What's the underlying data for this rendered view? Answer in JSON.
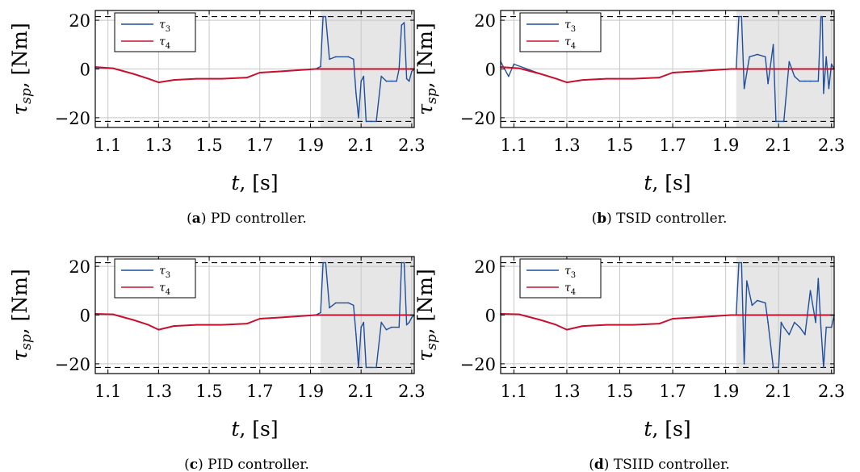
{
  "colors": {
    "tau3": "#1f4e9a",
    "tau4": "#c8102e",
    "shade": "#e6e6e6",
    "grid": "#c8c8c8",
    "limit": "#000000"
  },
  "chart_data": [
    {
      "type": "line",
      "caption_letter": "a",
      "caption_text": " PD controller.",
      "xlabel": "t, [s]",
      "ylabel": "τsp, [Nm]",
      "xlim": [
        1.05,
        2.31
      ],
      "ylim": [
        -24,
        24
      ],
      "xticks": [
        "1.1",
        "1.3",
        "1.5",
        "1.7",
        "1.9",
        "2.1",
        "2.3"
      ],
      "yticks": [
        "20",
        "0",
        "−20"
      ],
      "limits": [
        21.5,
        -21.5
      ],
      "shaded": [
        1.94,
        2.31
      ],
      "grid": true,
      "legend": {
        "position": "top-left",
        "entries": [
          "τ3",
          "τ4"
        ]
      },
      "series": [
        {
          "name": "τ3",
          "x": [
            1.05,
            1.12,
            1.2,
            1.26,
            1.3,
            1.36,
            1.45,
            1.55,
            1.65,
            1.7,
            1.78,
            1.85,
            1.92,
            1.94,
            1.95,
            1.96,
            1.975,
            2.0,
            2.05,
            2.07,
            2.08,
            2.09,
            2.1,
            2.11,
            2.12,
            2.14,
            2.16,
            2.18,
            2.2,
            2.22,
            2.24,
            2.25,
            2.26,
            2.27,
            2.28,
            2.29,
            2.3,
            2.31
          ],
          "y": [
            0.5,
            0.3,
            -2,
            -4,
            -5.5,
            -4.5,
            -4,
            -4,
            -3.5,
            -1.5,
            -1,
            -0.5,
            0,
            1,
            21.5,
            21.5,
            4,
            5,
            5,
            4,
            -10,
            -20,
            -5,
            -3,
            -21.5,
            -21.5,
            -21.5,
            -3,
            -5,
            -5,
            -5,
            0,
            18,
            19,
            -4,
            -5,
            -1,
            0
          ]
        },
        {
          "name": "τ4",
          "x": [
            1.05,
            1.12,
            1.2,
            1.26,
            1.3,
            1.36,
            1.45,
            1.55,
            1.65,
            1.7,
            1.78,
            1.85,
            1.92,
            1.94,
            2.31
          ],
          "y": [
            0.8,
            0.3,
            -2,
            -4,
            -5.5,
            -4.5,
            -4,
            -4,
            -3.5,
            -1.5,
            -1,
            -0.5,
            0,
            0,
            0
          ]
        }
      ]
    },
    {
      "type": "line",
      "caption_letter": "b",
      "caption_text": " TSID controller.",
      "xlabel": "t, [s]",
      "ylabel": "τsp, [Nm]",
      "xlim": [
        1.05,
        2.31
      ],
      "ylim": [
        -24,
        24
      ],
      "xticks": [
        "1.1",
        "1.3",
        "1.5",
        "1.7",
        "1.9",
        "2.1",
        "2.3"
      ],
      "yticks": [
        "20",
        "0",
        "−20"
      ],
      "limits": [
        21.5,
        -21.5
      ],
      "shaded": [
        1.94,
        2.31
      ],
      "grid": true,
      "legend": {
        "position": "top-left",
        "entries": [
          "τ3",
          "τ4"
        ]
      },
      "series": [
        {
          "name": "τ3",
          "x": [
            1.05,
            1.08,
            1.1,
            1.15,
            1.2,
            1.26,
            1.3,
            1.36,
            1.45,
            1.55,
            1.65,
            1.7,
            1.78,
            1.85,
            1.92,
            1.94,
            1.95,
            1.96,
            1.97,
            1.99,
            2.02,
            2.05,
            2.06,
            2.08,
            2.09,
            2.1,
            2.12,
            2.14,
            2.16,
            2.18,
            2.2,
            2.22,
            2.25,
            2.26,
            2.265,
            2.27,
            2.28,
            2.29,
            2.3,
            2.31
          ],
          "y": [
            3,
            -3,
            2,
            0,
            -2,
            -4,
            -5.5,
            -4.5,
            -4,
            -4,
            -3.5,
            -1.5,
            -1,
            -0.5,
            0,
            0,
            21.5,
            21.5,
            -8,
            5,
            6,
            5,
            -6,
            10,
            -21.5,
            -21.5,
            -21.5,
            3,
            -3,
            -5,
            -5,
            -5,
            -5,
            21.5,
            21.5,
            -10,
            5,
            -8,
            2,
            0
          ]
        },
        {
          "name": "τ4",
          "x": [
            1.05,
            1.12,
            1.2,
            1.26,
            1.3,
            1.36,
            1.45,
            1.55,
            1.65,
            1.7,
            1.78,
            1.85,
            1.92,
            1.94,
            2.31
          ],
          "y": [
            0.8,
            0.3,
            -2,
            -4,
            -5.5,
            -4.5,
            -4,
            -4,
            -3.5,
            -1.5,
            -1,
            -0.5,
            0,
            0,
            0
          ]
        }
      ]
    },
    {
      "type": "line",
      "caption_letter": "c",
      "caption_text": " PID controller.",
      "xlabel": "t, [s]",
      "ylabel": "τsp, [Nm]",
      "xlim": [
        1.05,
        2.31
      ],
      "ylim": [
        -24,
        24
      ],
      "xticks": [
        "1.1",
        "1.3",
        "1.5",
        "1.7",
        "1.9",
        "2.1",
        "2.3"
      ],
      "yticks": [
        "20",
        "0",
        "−20"
      ],
      "limits": [
        21.5,
        -21.5
      ],
      "shaded": [
        1.94,
        2.31
      ],
      "grid": true,
      "legend": {
        "position": "top-left",
        "entries": [
          "τ3",
          "τ4"
        ]
      },
      "series": [
        {
          "name": "τ3",
          "x": [
            1.05,
            1.12,
            1.2,
            1.26,
            1.3,
            1.36,
            1.45,
            1.55,
            1.65,
            1.7,
            1.78,
            1.85,
            1.92,
            1.94,
            1.95,
            1.96,
            1.975,
            2.0,
            2.05,
            2.07,
            2.08,
            2.09,
            2.1,
            2.11,
            2.12,
            2.14,
            2.16,
            2.18,
            2.2,
            2.22,
            2.25,
            2.26,
            2.27,
            2.28,
            2.29,
            2.3,
            2.31
          ],
          "y": [
            0.3,
            0.3,
            -2,
            -4,
            -6,
            -4.5,
            -4,
            -4,
            -3.5,
            -1.5,
            -1,
            -0.5,
            0,
            1,
            21.5,
            21.5,
            3,
            5,
            5,
            4,
            -8,
            -21.5,
            -5,
            -3,
            -21.5,
            -21.5,
            -21.5,
            -3,
            -6,
            -5,
            -5,
            21.5,
            21.5,
            -4,
            -3,
            -1,
            0
          ]
        },
        {
          "name": "τ4",
          "x": [
            1.05,
            1.12,
            1.2,
            1.26,
            1.3,
            1.36,
            1.45,
            1.55,
            1.65,
            1.7,
            1.78,
            1.85,
            1.92,
            1.94,
            2.31
          ],
          "y": [
            0.5,
            0.3,
            -2,
            -4,
            -6,
            -4.5,
            -4,
            -4,
            -3.5,
            -1.5,
            -1,
            -0.5,
            0,
            0,
            0
          ]
        }
      ]
    },
    {
      "type": "line",
      "caption_letter": "d",
      "caption_text": " TSIID controller.",
      "xlabel": "t, [s]",
      "ylabel": "τsp, [Nm]",
      "xlim": [
        1.05,
        2.31
      ],
      "ylim": [
        -24,
        24
      ],
      "xticks": [
        "1.1",
        "1.3",
        "1.5",
        "1.7",
        "1.9",
        "2.1",
        "2.3"
      ],
      "yticks": [
        "20",
        "0",
        "−20"
      ],
      "limits": [
        21.5,
        -21.5
      ],
      "shaded": [
        1.94,
        2.31
      ],
      "grid": true,
      "legend": {
        "position": "top-left",
        "entries": [
          "τ3",
          "τ4"
        ]
      },
      "series": [
        {
          "name": "τ3",
          "x": [
            1.05,
            1.12,
            1.2,
            1.26,
            1.3,
            1.36,
            1.45,
            1.55,
            1.65,
            1.7,
            1.78,
            1.85,
            1.92,
            1.94,
            1.95,
            1.96,
            1.97,
            1.98,
            2.0,
            2.02,
            2.05,
            2.06,
            2.08,
            2.09,
            2.1,
            2.11,
            2.12,
            2.14,
            2.16,
            2.18,
            2.2,
            2.22,
            2.24,
            2.25,
            2.26,
            2.27,
            2.28,
            2.3,
            2.31
          ],
          "y": [
            0.5,
            0.3,
            -2,
            -4,
            -6,
            -4.5,
            -4,
            -4,
            -3.5,
            -1.5,
            -1,
            -0.5,
            0,
            0,
            21.5,
            21.5,
            -20,
            14,
            4,
            6,
            5,
            -3,
            -21.5,
            -21.5,
            -21.5,
            -3,
            -5,
            -8,
            -3,
            -5,
            -8,
            10,
            -3,
            15,
            -5,
            -21.5,
            -5,
            -5,
            0
          ]
        },
        {
          "name": "τ4",
          "x": [
            1.05,
            1.12,
            1.2,
            1.26,
            1.3,
            1.36,
            1.45,
            1.55,
            1.65,
            1.7,
            1.78,
            1.85,
            1.92,
            1.94,
            2.31
          ],
          "y": [
            0.5,
            0.3,
            -2,
            -4,
            -6,
            -4.5,
            -4,
            -4,
            -3.5,
            -1.5,
            -1,
            -0.5,
            0,
            0,
            0
          ]
        }
      ]
    }
  ]
}
